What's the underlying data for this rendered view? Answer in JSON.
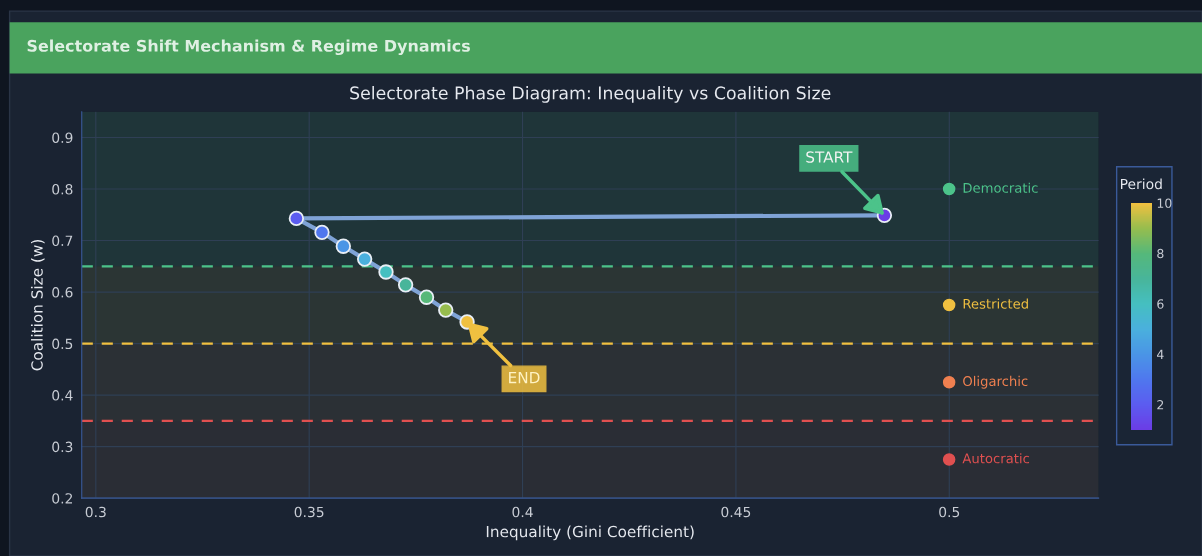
{
  "chart_data": {
    "type": "line",
    "title": "Selectorate Shift Mechanism & Regime Dynamics",
    "subtitle": "Selectorate Phase Diagram: Inequality vs Coalition Size",
    "xlabel": "Inequality (Gini Coefficient)",
    "ylabel": "Coalition Size (w)",
    "clabel": "Period",
    "x": [
      0.4848,
      0.347,
      0.353,
      0.358,
      0.363,
      0.368,
      0.3726,
      0.3775,
      0.382,
      0.387
    ],
    "series": [
      {
        "color": "#7fa3d6",
        "marker": "none",
        "values": [
          0.749,
          0.743,
          0.716,
          0.689,
          0.664,
          0.639,
          0.614,
          0.59,
          0.565,
          0.542
        ]
      },
      {
        "type": "scatter",
        "marker": "circle",
        "values": [
          0.749,
          0.743,
          0.716,
          0.689,
          0.664,
          0.639,
          0.614,
          0.59,
          0.565,
          0.542
        ],
        "cvalues": [
          1,
          2,
          3,
          4,
          5,
          6,
          7,
          8,
          9,
          10
        ],
        "colors": [
          "#6b3de6",
          "#5b5cf0",
          "#4f78ee",
          "#4a95e6",
          "#4ab0dd",
          "#45bfc0",
          "#48b59a",
          "#55b87a",
          "#96bd4e",
          "#f0c040"
        ]
      }
    ],
    "clim": [
      1,
      10
    ],
    "cticks": [
      2,
      4,
      6,
      8,
      10
    ],
    "xlim": [
      0.2967,
      0.535
    ],
    "xticks": [
      0.3,
      0.35,
      0.4,
      0.45,
      0.5
    ],
    "ylim": [
      0.2,
      0.95
    ],
    "yticks": [
      0.2,
      0.3,
      0.4,
      0.5,
      0.6,
      0.7,
      0.8,
      0.9
    ],
    "ref_lines": [
      {
        "axis": "y",
        "value": 0.65,
        "color": "#4cc38a",
        "line_style": "dashed"
      },
      {
        "axis": "y",
        "value": 0.5,
        "color": "#f0c040",
        "line_style": "dashed"
      },
      {
        "axis": "y",
        "value": 0.35,
        "color": "#e05050",
        "line_style": "dashed"
      }
    ],
    "bands": [
      {
        "axis": "y",
        "from": 0.65,
        "to": 0.95,
        "label": "Democratic",
        "color": "#4cc38a"
      },
      {
        "axis": "y",
        "from": 0.5,
        "to": 0.65,
        "label": "Restricted",
        "color": "#f0c040"
      },
      {
        "axis": "y",
        "from": 0.35,
        "to": 0.5,
        "label": "Oligarchic",
        "color": "#f08050"
      },
      {
        "axis": "y",
        "from": 0.2,
        "to": 0.35,
        "label": "Autocratic",
        "color": "#e05050"
      }
    ],
    "annotations": [
      {
        "text": "START",
        "x": 0.4848,
        "y": 0.749
      },
      {
        "text": "END",
        "x": 0.387,
        "y": 0.542
      }
    ],
    "grid": true,
    "line_style": "solid",
    "legend": false
  }
}
